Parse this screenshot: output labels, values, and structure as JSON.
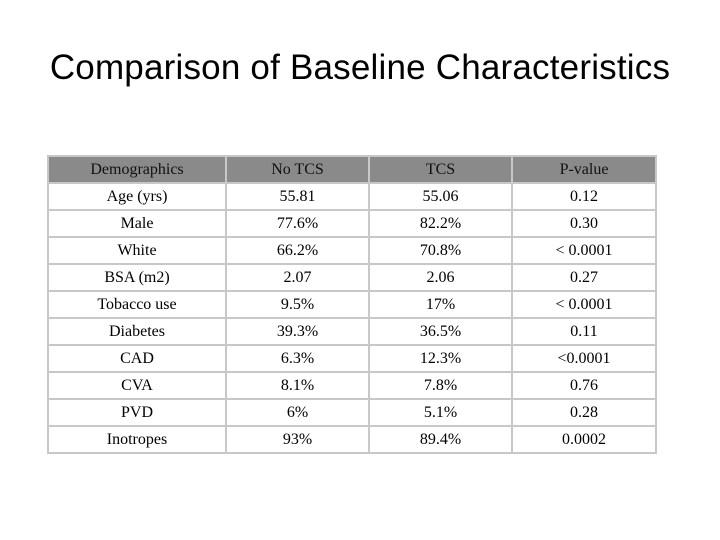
{
  "slide": {
    "title": "Comparison of Baseline Characteristics"
  },
  "table": {
    "headers": [
      "Demographics",
      "No TCS",
      "TCS",
      "P-value"
    ],
    "rows": [
      [
        "Age (yrs)",
        "55.81",
        "55.06",
        "0.12"
      ],
      [
        "Male",
        "77.6%",
        "82.2%",
        "0.30"
      ],
      [
        "White",
        "66.2%",
        "70.8%",
        "< 0.0001"
      ],
      [
        "BSA (m2)",
        "2.07",
        "2.06",
        "0.27"
      ],
      [
        "Tobacco use",
        "9.5%",
        "17%",
        "< 0.0001"
      ],
      [
        "Diabetes",
        "39.3%",
        "36.5%",
        "0.11"
      ],
      [
        "CAD",
        "6.3%",
        "12.3%",
        "<0.0001"
      ],
      [
        "CVA",
        "8.1%",
        "7.8%",
        "0.76"
      ],
      [
        "PVD",
        "6%",
        "5.1%",
        "0.28"
      ],
      [
        "Inotropes",
        "93%",
        "89.4%",
        "0.0002"
      ]
    ]
  },
  "colors": {
    "header_fill": "#8a8a8a",
    "border": "#c8c8c8"
  }
}
